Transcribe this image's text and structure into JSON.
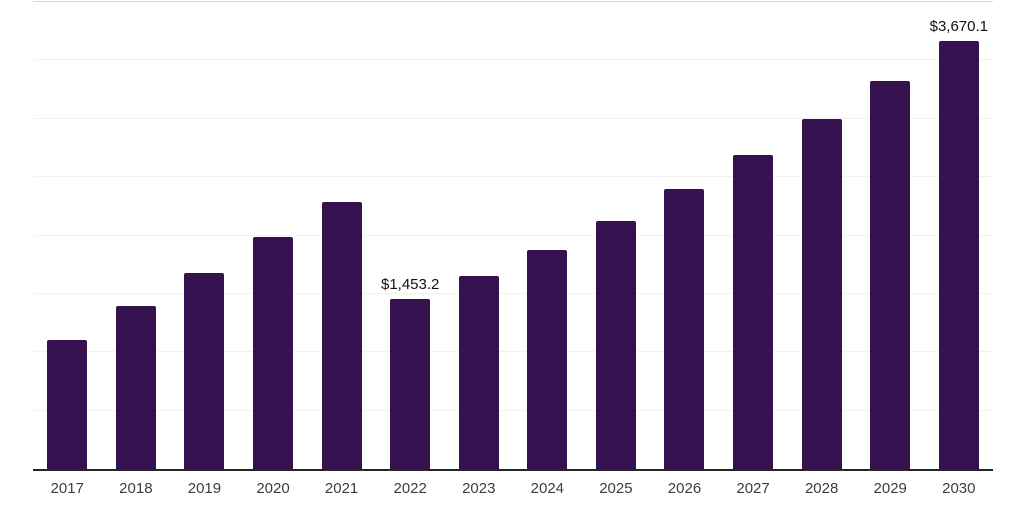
{
  "chart_data": {
    "type": "bar",
    "title": "",
    "xlabel": "",
    "ylabel": "",
    "categories": [
      "2017",
      "2018",
      "2019",
      "2020",
      "2021",
      "2022",
      "2023",
      "2024",
      "2025",
      "2026",
      "2027",
      "2028",
      "2029",
      "2030"
    ],
    "values": [
      1106,
      1392,
      1680,
      1985,
      2285,
      1453.2,
      1651,
      1877,
      2122,
      2396,
      2691,
      2999,
      3321,
      3670.1
    ],
    "value_prefix": "$",
    "labeled_points": [
      {
        "category": "2022",
        "label": "$1,453.2"
      },
      {
        "category": "2030",
        "label": "$3,670.1"
      }
    ],
    "ylim": [
      0,
      4000
    ],
    "gridline_interval": 500,
    "grid": "horizontal",
    "legend": "none",
    "notes": "only 2022 and 2030 carry data labels; remaining values estimated from gridlines"
  },
  "colors": {
    "background": "#ffffff",
    "bar": "#36114F",
    "axis_line": "#262626",
    "gridline": "#f2f2f2",
    "top_gridline": "#d9d9d9",
    "tick_label": "#3d3d3d",
    "data_label": "#111111"
  }
}
